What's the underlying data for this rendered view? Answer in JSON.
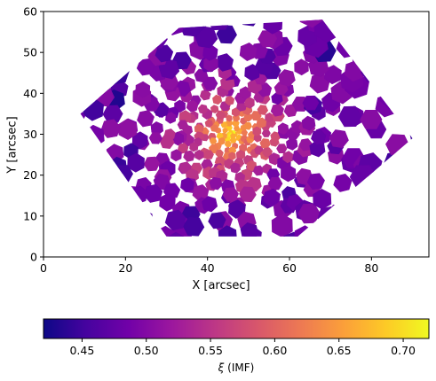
{
  "chart_data": {
    "type": "heatmap",
    "subtype": "voronoi-binned spatial map",
    "title": "",
    "xlabel": "X [arcsec]",
    "ylabel": "Y [arcsec]",
    "xlim": [
      0,
      94
    ],
    "ylim": [
      0,
      60
    ],
    "xticks": [
      0,
      20,
      40,
      60,
      80
    ],
    "yticks": [
      0,
      10,
      20,
      30,
      40,
      50,
      60
    ],
    "grid": false,
    "colormap": "plasma",
    "colorbar": {
      "label": "ξ (IMF)",
      "label_prefix": "ξ",
      "label_suffix": " (IMF)",
      "range": [
        0.42,
        0.72
      ],
      "ticks": [
        0.45,
        0.5,
        0.55,
        0.6,
        0.65,
        0.7
      ],
      "tick_labels": [
        "0.45",
        "0.50",
        "0.55",
        "0.60",
        "0.65",
        "0.70"
      ],
      "orientation": "horizontal",
      "position": "bottom"
    },
    "field_footprint": {
      "shape": "hexagon",
      "vertices": [
        [
          9,
          35
        ],
        [
          33,
          56
        ],
        [
          68,
          58
        ],
        [
          90,
          29
        ],
        [
          62,
          5
        ],
        [
          30,
          5
        ]
      ]
    },
    "value_field": {
      "center": [
        46,
        30
      ],
      "peak_value": 0.7,
      "edge_value": 0.44
    }
  },
  "colors": {
    "plasma_stops": [
      "#0d0887",
      "#46039f",
      "#7201a8",
      "#9c179e",
      "#bd3786",
      "#d8576b",
      "#ed7953",
      "#fb9f3a",
      "#fdca26",
      "#f0f921"
    ]
  }
}
